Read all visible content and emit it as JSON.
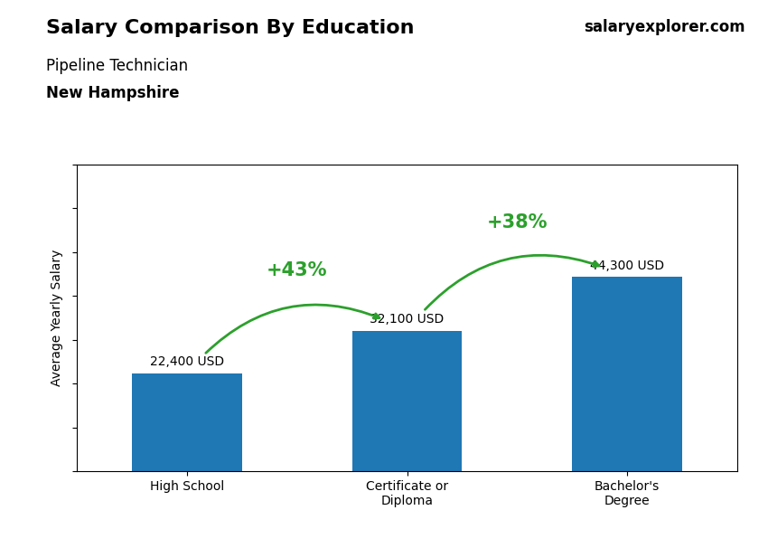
{
  "chart_data": {
    "type": "bar",
    "title": "Salary Comparison By Education",
    "subtitle": [
      "Pipeline Technician",
      "New Hampshire"
    ],
    "source": "salaryexplorer.com",
    "ylabel": "Average Yearly Salary",
    "categories": [
      "High School",
      "Certificate or\nDiploma",
      "Bachelor's\nDegree"
    ],
    "values": [
      22400,
      32100,
      44300
    ],
    "value_labels": [
      "22,400 USD",
      "32,100 USD",
      "44,300 USD"
    ],
    "annotations": [
      "+43%",
      "+38%"
    ],
    "data_labels": true,
    "tick_labels": "x",
    "grid": false,
    "ylim": [
      0,
      70000
    ],
    "yticks": [
      0,
      10000,
      20000,
      30000,
      40000,
      50000,
      60000,
      70000
    ]
  }
}
